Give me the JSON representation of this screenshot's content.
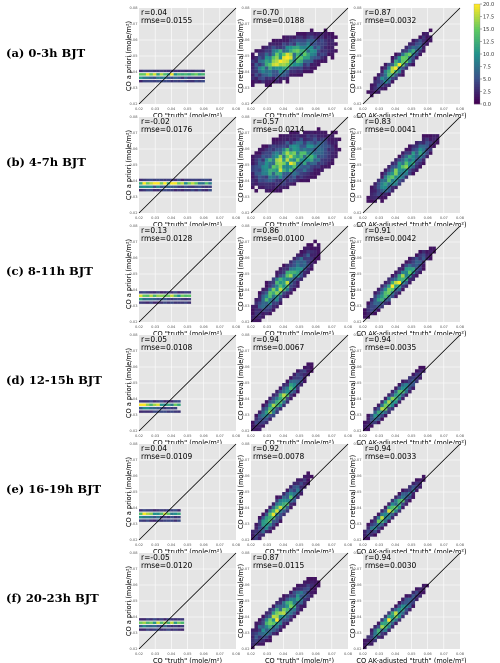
{
  "panel_labels": [
    "(a) 0-3h BJT",
    "(b) 4-7h BJT",
    "(c) 8-11h BJT",
    "(d) 12-15h BJT",
    "(e) 16-19h BJT",
    "(f) 20-23h BJT"
  ],
  "colors": {
    "panel_background": "#e5e5e5",
    "one_to_one_line": "#000000",
    "colormap": [
      "#440154",
      "#3b528b",
      "#21918c",
      "#5ec962",
      "#fde725"
    ]
  },
  "chart_data": {
    "type": "heatmap",
    "columns": [
      {
        "ylabel": "CO a priori (mole/m²)",
        "xlabel": "CO \"truth\" (mole/m²)"
      },
      {
        "ylabel": "CO retrieval (mole/m²)",
        "xlabel": "CO \"truth\" (mole/m²)"
      },
      {
        "ylabel": "CO retrieval (mole/m²)",
        "xlabel": "CO AK-adjusted \"truth\" (mole/m²)"
      }
    ],
    "xlim": [
      0.02,
      0.08
    ],
    "ylim": [
      0.02,
      0.08
    ],
    "ticks": [
      "0.02",
      "0.03",
      "0.04",
      "0.05",
      "0.06",
      "0.07",
      "0.08"
    ],
    "colorbar": {
      "ticks": [
        "0.0",
        "2.5",
        "5.0",
        "7.5",
        "10.0",
        "12.5",
        "15.0",
        "17.5",
        "20.0"
      ],
      "range": [
        0,
        20
      ]
    },
    "panels": [
      [
        {
          "r": "r=0.04",
          "rmse": "rmse=0.0155",
          "kind": "apriori",
          "x0": 0.02,
          "x1": 0.06,
          "y": 0.0375
        },
        {
          "r": "r=0.70",
          "rmse": "rmse=0.0188",
          "kind": "cloud",
          "cx": 0.047,
          "cy": 0.05,
          "sx": 0.012,
          "sy": 0.007,
          "rho": 0.55
        },
        {
          "r": "r=0.87",
          "rmse": "rmse=0.0032",
          "kind": "cloud",
          "cx": 0.045,
          "cy": 0.047,
          "sx": 0.008,
          "sy": 0.008,
          "rho": 0.9
        }
      ],
      [
        {
          "r": "r=-0.02",
          "rmse": "rmse=0.0176",
          "kind": "apriori",
          "x0": 0.02,
          "x1": 0.065,
          "y": 0.039
        },
        {
          "r": "r=0.57",
          "rmse": "rmse=0.0214",
          "kind": "cloud",
          "cx": 0.048,
          "cy": 0.054,
          "sx": 0.012,
          "sy": 0.008,
          "rho": 0.45
        },
        {
          "r": "r=0.83",
          "rmse": "rmse=0.0041",
          "kind": "cloud",
          "cx": 0.047,
          "cy": 0.05,
          "sx": 0.009,
          "sy": 0.009,
          "rho": 0.88
        }
      ],
      [
        {
          "r": "r=0.13",
          "rmse": "rmse=0.0128",
          "kind": "apriori",
          "x0": 0.02,
          "x1": 0.052,
          "y": 0.037
        },
        {
          "r": "r=0.86",
          "rmse": "rmse=0.0100",
          "kind": "cloud",
          "cx": 0.043,
          "cy": 0.047,
          "sx": 0.009,
          "sy": 0.01,
          "rho": 0.88
        },
        {
          "r": "r=0.91",
          "rmse": "rmse=0.0042",
          "kind": "cloud",
          "cx": 0.044,
          "cy": 0.047,
          "sx": 0.009,
          "sy": 0.009,
          "rho": 0.92
        }
      ],
      [
        {
          "r": "r=0.05",
          "rmse": "rmse=0.0108",
          "kind": "apriori",
          "x0": 0.02,
          "x1": 0.045,
          "y": 0.036
        },
        {
          "r": "r=0.94",
          "rmse": "rmse=0.0067",
          "kind": "cloud",
          "cx": 0.04,
          "cy": 0.042,
          "sx": 0.008,
          "sy": 0.009,
          "rho": 0.93
        },
        {
          "r": "r=0.94",
          "rmse": "rmse=0.0035",
          "kind": "cloud",
          "cx": 0.041,
          "cy": 0.042,
          "sx": 0.008,
          "sy": 0.008,
          "rho": 0.94
        }
      ],
      [
        {
          "r": "r=0.04",
          "rmse": "rmse=0.0109",
          "kind": "apriori",
          "x0": 0.02,
          "x1": 0.045,
          "y": 0.036
        },
        {
          "r": "r=0.92",
          "rmse": "rmse=0.0078",
          "kind": "cloud",
          "cx": 0.039,
          "cy": 0.041,
          "sx": 0.008,
          "sy": 0.009,
          "rho": 0.92
        },
        {
          "r": "r=0.94",
          "rmse": "rmse=0.0033",
          "kind": "cloud",
          "cx": 0.04,
          "cy": 0.041,
          "sx": 0.008,
          "sy": 0.008,
          "rho": 0.94
        }
      ],
      [
        {
          "r": "r=-0.05",
          "rmse": "rmse=0.0120",
          "kind": "apriori",
          "x0": 0.02,
          "x1": 0.048,
          "y": 0.037
        },
        {
          "r": "r=0.87",
          "rmse": "rmse=0.0115",
          "kind": "cloud",
          "cx": 0.041,
          "cy": 0.044,
          "sx": 0.009,
          "sy": 0.009,
          "rho": 0.87
        },
        {
          "r": "r=0.94",
          "rmse": "rmse=0.0030",
          "kind": "cloud",
          "cx": 0.041,
          "cy": 0.042,
          "sx": 0.008,
          "sy": 0.008,
          "rho": 0.94
        }
      ]
    ]
  }
}
